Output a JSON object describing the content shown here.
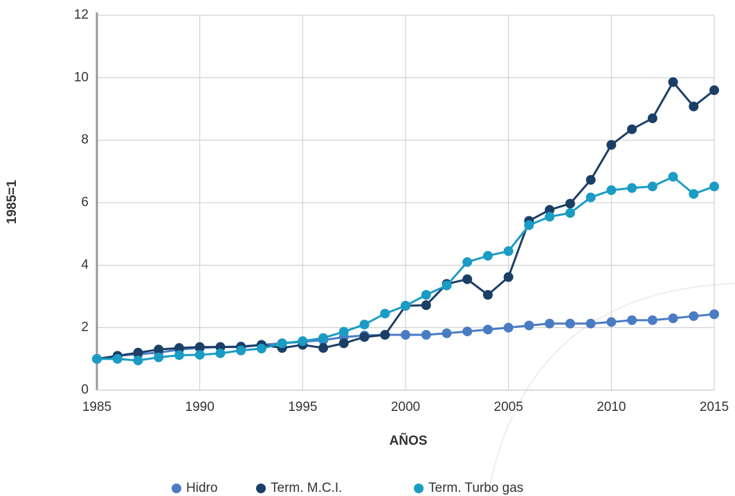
{
  "chart_data": {
    "type": "line",
    "x": [
      1985,
      1986,
      1987,
      1988,
      1989,
      1990,
      1991,
      1992,
      1993,
      1994,
      1995,
      1996,
      1997,
      1998,
      1999,
      2000,
      2001,
      2002,
      2003,
      2004,
      2005,
      2006,
      2007,
      2008,
      2009,
      2010,
      2011,
      2012,
      2013,
      2014,
      2015
    ],
    "series": [
      {
        "name": "Hidro",
        "color": "#4a7cc4",
        "values": [
          1.0,
          1.1,
          1.15,
          1.2,
          1.3,
          1.35,
          1.38,
          1.4,
          1.45,
          1.5,
          1.55,
          1.6,
          1.7,
          1.75,
          1.77,
          1.77,
          1.77,
          1.82,
          1.88,
          1.94,
          2.0,
          2.07,
          2.13,
          2.13,
          2.13,
          2.18,
          2.24,
          2.24,
          2.3,
          2.37,
          2.43
        ]
      },
      {
        "name": "Term. M.C.I.",
        "color": "#1b3f66",
        "values": [
          1.0,
          1.1,
          1.2,
          1.3,
          1.35,
          1.38,
          1.38,
          1.38,
          1.45,
          1.35,
          1.45,
          1.35,
          1.5,
          1.7,
          1.77,
          2.7,
          2.72,
          3.4,
          3.55,
          3.05,
          3.62,
          5.42,
          5.77,
          5.97,
          6.73,
          7.85,
          8.35,
          8.7,
          9.86,
          9.08,
          9.6
        ]
      },
      {
        "name": "Term. Turbo gas",
        "color": "#1a9cc4",
        "values": [
          1.0,
          1.0,
          0.95,
          1.05,
          1.12,
          1.13,
          1.18,
          1.27,
          1.33,
          1.5,
          1.57,
          1.67,
          1.87,
          2.1,
          2.45,
          2.7,
          3.05,
          3.35,
          4.1,
          4.3,
          4.45,
          5.28,
          5.55,
          5.67,
          6.17,
          6.4,
          6.47,
          6.52,
          6.83,
          6.28,
          6.52
        ]
      }
    ],
    "xlabel": "AÑOS",
    "ylabel": "1985=1",
    "xlim": [
      1985,
      2015
    ],
    "xticks": [
      1985,
      1990,
      1995,
      2000,
      2005,
      2010,
      2015
    ],
    "ylim": [
      0,
      12
    ],
    "yticks": [
      0,
      2,
      4,
      6,
      8,
      10,
      12
    ],
    "grid": true,
    "legend": "bottom"
  }
}
